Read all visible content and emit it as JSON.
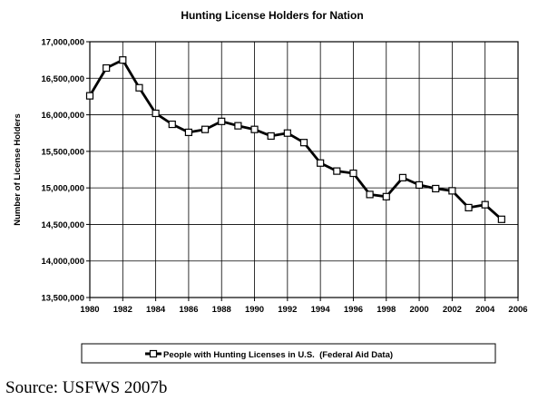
{
  "chart_data": {
    "type": "line",
    "title": "Hunting License Holders for Nation",
    "xlabel": "",
    "ylabel": "Number of License Holders",
    "xlim": [
      1980,
      2006
    ],
    "ylim": [
      13500000,
      17000000
    ],
    "x_ticks": [
      1980,
      1982,
      1984,
      1986,
      1988,
      1990,
      1992,
      1994,
      1996,
      1998,
      2000,
      2002,
      2004,
      2006
    ],
    "x_tick_labels": [
      "1980",
      "1982",
      "1984",
      "1986",
      "1988",
      "1990",
      "1992",
      "1994",
      "1996",
      "1998",
      "2000",
      "2002",
      "2004",
      "2006"
    ],
    "y_ticks": [
      13500000,
      14000000,
      14500000,
      15000000,
      15500000,
      16000000,
      16500000,
      17000000
    ],
    "y_tick_labels": [
      "13,500,000",
      "14,000,000",
      "14,500,000",
      "15,000,000",
      "15,500,000",
      "16,000,000",
      "16,500,000",
      "17,000,000"
    ],
    "grid": true,
    "legend_position": "bottom",
    "series": [
      {
        "name": "People with Hunting Licenses in U.S.  (Federal Aid Data)",
        "color": "#000000",
        "marker": "square-open",
        "x": [
          1980,
          1981,
          1982,
          1983,
          1984,
          1985,
          1986,
          1987,
          1988,
          1989,
          1990,
          1991,
          1992,
          1993,
          1994,
          1995,
          1996,
          1997,
          1998,
          1999,
          2000,
          2001,
          2002,
          2003,
          2004,
          2005
        ],
        "y": [
          16260000,
          16640000,
          16750000,
          16370000,
          16020000,
          15870000,
          15760000,
          15800000,
          15910000,
          15850000,
          15800000,
          15710000,
          15750000,
          15620000,
          15340000,
          15230000,
          15200000,
          14910000,
          14880000,
          15140000,
          15040000,
          14990000,
          14960000,
          14730000,
          14770000,
          14570000
        ]
      }
    ]
  },
  "source": "Source:  USFWS 2007b"
}
